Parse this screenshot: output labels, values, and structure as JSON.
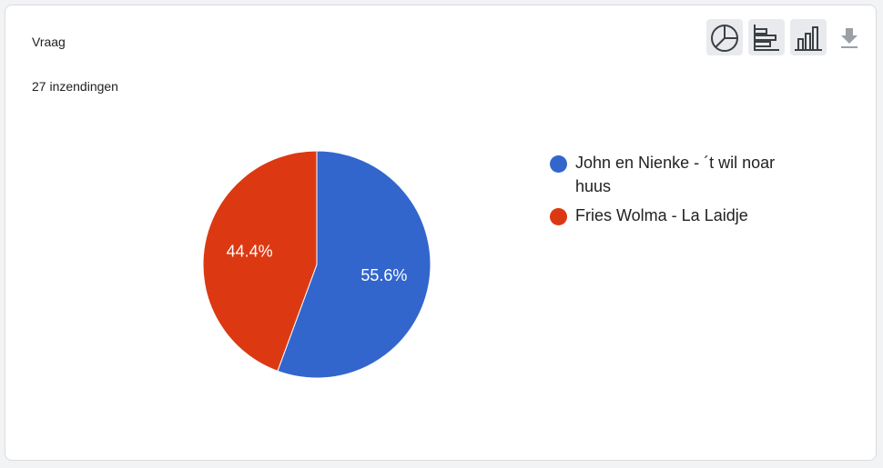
{
  "chart_data": {
    "type": "pie",
    "title": "Vraag",
    "subtitle": "27 inzendingen",
    "categories": [
      "John en Nienke - ´t wil noar huus",
      "Fries Wolma - La Laidje"
    ],
    "values": [
      55.6,
      44.4
    ],
    "value_labels": [
      "55.6%",
      "44.4%"
    ],
    "colors": [
      "#3366cc",
      "#dc3912"
    ]
  }
}
